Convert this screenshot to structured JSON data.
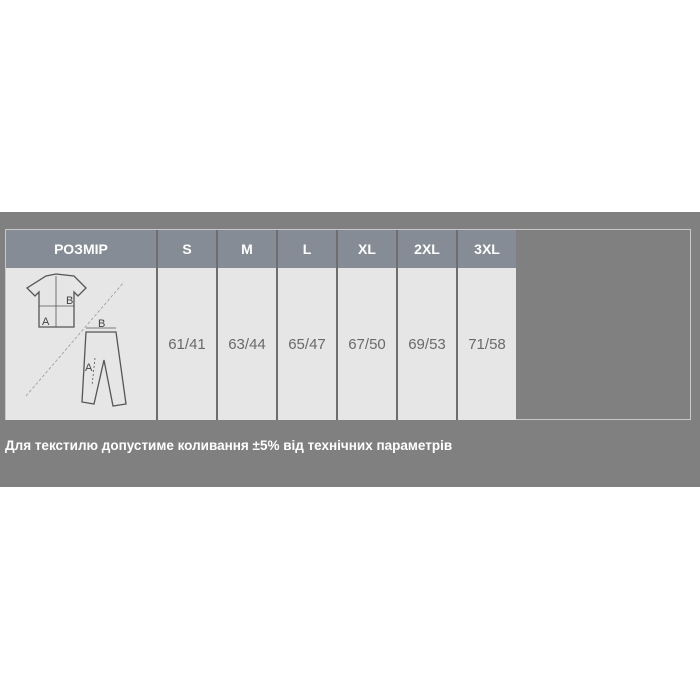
{
  "table": {
    "header": [
      "РОЗМІР",
      "S",
      "M",
      "L",
      "XL",
      "2XL",
      "3XL"
    ],
    "diagram_labels": {
      "shirt_a": "A",
      "shirt_b": "B",
      "pants_a": "A",
      "pants_b": "B"
    },
    "values": [
      "61/41",
      "63/44",
      "65/47",
      "67/50",
      "69/53",
      "71/58"
    ]
  },
  "note": "Для текстилю допустиме коливання ±5% від технічних параметрів",
  "colors": {
    "background": "#808080",
    "header": "#868c95",
    "cell": "#e6e6e6"
  }
}
